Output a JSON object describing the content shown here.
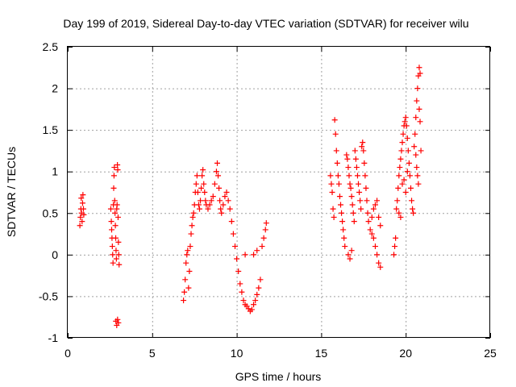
{
  "chart_data": {
    "type": "scatter",
    "title": "Day 199 of 2019, Sidereal Day-to-day VTEC variation (SDTVAR) for receiver wilu",
    "xlabel": "GPS time / hours",
    "ylabel": "SDTVAR / TECUs",
    "xlim": [
      0,
      25
    ],
    "ylim": [
      -1,
      2.5
    ],
    "xticks": [
      0,
      5,
      10,
      15,
      20,
      25
    ],
    "yticks": [
      -1,
      -0.5,
      0,
      0.5,
      1,
      1.5,
      2,
      2.5
    ],
    "xtick_labels": [
      "0",
      "5",
      "10",
      "15",
      "20",
      "25"
    ],
    "ytick_labels": [
      "-1",
      "-0.5",
      "0",
      "0.5",
      "1",
      "1.5",
      "2",
      "2.5"
    ],
    "grid": true,
    "marker": "+",
    "color": "#ff0000",
    "series": [
      {
        "name": "SDTVAR",
        "points": [
          [
            0.72,
            0.35
          ],
          [
            0.75,
            0.45
          ],
          [
            0.78,
            0.55
          ],
          [
            0.8,
            0.68
          ],
          [
            0.82,
            0.5
          ],
          [
            0.85,
            0.4
          ],
          [
            0.88,
            0.62
          ],
          [
            0.9,
            0.72
          ],
          [
            0.93,
            0.55
          ],
          [
            0.95,
            0.48
          ],
          [
            2.55,
            0.55
          ],
          [
            2.58,
            0.4
          ],
          [
            2.6,
            0.3
          ],
          [
            2.62,
            0.2
          ],
          [
            2.64,
            0.1
          ],
          [
            2.66,
            0.0
          ],
          [
            2.68,
            -0.1
          ],
          [
            2.7,
            0.6
          ],
          [
            2.72,
            0.8
          ],
          [
            2.74,
            0.95
          ],
          [
            2.76,
            1.05
          ],
          [
            2.78,
            0.65
          ],
          [
            2.8,
            0.5
          ],
          [
            2.82,
            0.35
          ],
          [
            2.84,
            0.2
          ],
          [
            2.86,
            0.05
          ],
          [
            2.88,
            -0.05
          ],
          [
            2.9,
            0.55
          ],
          [
            2.92,
            0.6
          ],
          [
            2.94,
            1.08
          ],
          [
            2.96,
            1.02
          ],
          [
            2.98,
            0.45
          ],
          [
            3.0,
            0.15
          ],
          [
            3.02,
            0.0
          ],
          [
            3.04,
            -0.12
          ],
          [
            2.85,
            -0.8
          ],
          [
            2.9,
            -0.85
          ],
          [
            2.95,
            -0.78
          ],
          [
            3.0,
            -0.82
          ],
          [
            6.85,
            -0.55
          ],
          [
            6.9,
            -0.45
          ],
          [
            6.95,
            -0.3
          ],
          [
            7.0,
            -0.1
          ],
          [
            7.05,
            0.0
          ],
          [
            7.1,
            0.05
          ],
          [
            7.15,
            -0.4
          ],
          [
            7.2,
            -0.2
          ],
          [
            7.25,
            0.1
          ],
          [
            7.3,
            0.25
          ],
          [
            7.35,
            0.35
          ],
          [
            7.4,
            0.45
          ],
          [
            7.45,
            0.5
          ],
          [
            7.5,
            0.6
          ],
          [
            7.55,
            0.75
          ],
          [
            7.6,
            0.85
          ],
          [
            7.65,
            0.95
          ],
          [
            7.7,
            0.75
          ],
          [
            7.75,
            0.6
          ],
          [
            7.8,
            0.55
          ],
          [
            7.85,
            0.65
          ],
          [
            7.9,
            0.8
          ],
          [
            7.95,
            0.95
          ],
          [
            8.0,
            1.02
          ],
          [
            8.05,
            0.85
          ],
          [
            8.1,
            0.75
          ],
          [
            8.15,
            0.65
          ],
          [
            8.2,
            0.6
          ],
          [
            8.3,
            0.55
          ],
          [
            8.4,
            0.6
          ],
          [
            8.5,
            0.65
          ],
          [
            8.6,
            0.7
          ],
          [
            8.7,
            0.85
          ],
          [
            8.8,
            1.0
          ],
          [
            8.85,
            1.1
          ],
          [
            8.9,
            0.95
          ],
          [
            8.95,
            0.8
          ],
          [
            9.0,
            0.65
          ],
          [
            9.05,
            0.55
          ],
          [
            9.1,
            0.5
          ],
          [
            9.2,
            0.6
          ],
          [
            9.3,
            0.7
          ],
          [
            9.4,
            0.75
          ],
          [
            9.5,
            0.65
          ],
          [
            9.6,
            0.55
          ],
          [
            9.7,
            0.4
          ],
          [
            9.8,
            0.25
          ],
          [
            9.9,
            0.1
          ],
          [
            10.0,
            -0.05
          ],
          [
            10.1,
            -0.2
          ],
          [
            10.2,
            -0.35
          ],
          [
            10.3,
            -0.45
          ],
          [
            10.4,
            -0.55
          ],
          [
            10.5,
            -0.6
          ],
          [
            10.6,
            -0.62
          ],
          [
            10.7,
            -0.65
          ],
          [
            10.8,
            -0.68
          ],
          [
            10.9,
            -0.66
          ],
          [
            11.0,
            -0.6
          ],
          [
            11.1,
            -0.55
          ],
          [
            11.2,
            -0.48
          ],
          [
            11.3,
            -0.4
          ],
          [
            11.4,
            -0.3
          ],
          [
            11.5,
            0.1
          ],
          [
            11.6,
            0.2
          ],
          [
            11.7,
            0.3
          ],
          [
            11.75,
            0.38
          ],
          [
            11.0,
            0.0
          ],
          [
            11.2,
            0.05
          ],
          [
            10.5,
            0.0
          ],
          [
            15.55,
            0.95
          ],
          [
            15.6,
            0.85
          ],
          [
            15.65,
            0.75
          ],
          [
            15.7,
            0.55
          ],
          [
            15.75,
            0.45
          ],
          [
            15.8,
            1.62
          ],
          [
            15.85,
            1.45
          ],
          [
            15.9,
            1.25
          ],
          [
            15.95,
            1.1
          ],
          [
            16.0,
            0.95
          ],
          [
            16.05,
            0.85
          ],
          [
            16.1,
            0.7
          ],
          [
            16.15,
            0.6
          ],
          [
            16.2,
            0.5
          ],
          [
            16.25,
            0.4
          ],
          [
            16.3,
            0.3
          ],
          [
            16.35,
            0.2
          ],
          [
            16.4,
            0.1
          ],
          [
            16.5,
            1.2
          ],
          [
            16.55,
            1.15
          ],
          [
            16.6,
            1.05
          ],
          [
            16.65,
            0.95
          ],
          [
            16.7,
            0.85
          ],
          [
            16.75,
            0.8
          ],
          [
            16.8,
            0.7
          ],
          [
            16.85,
            0.6
          ],
          [
            16.9,
            0.5
          ],
          [
            16.95,
            0.4
          ],
          [
            17.0,
            1.25
          ],
          [
            17.05,
            1.15
          ],
          [
            17.1,
            1.05
          ],
          [
            17.15,
            0.95
          ],
          [
            17.2,
            0.85
          ],
          [
            17.25,
            0.75
          ],
          [
            17.3,
            0.65
          ],
          [
            17.35,
            0.55
          ],
          [
            17.4,
            1.3
          ],
          [
            17.45,
            1.35
          ],
          [
            17.5,
            1.25
          ],
          [
            17.55,
            1.1
          ],
          [
            17.6,
            0.95
          ],
          [
            17.65,
            0.8
          ],
          [
            17.7,
            0.65
          ],
          [
            17.75,
            0.5
          ],
          [
            17.8,
            0.4
          ],
          [
            17.9,
            0.3
          ],
          [
            18.0,
            0.25
          ],
          [
            18.1,
            0.2
          ],
          [
            18.2,
            0.1
          ],
          [
            18.3,
            0.0
          ],
          [
            18.4,
            -0.1
          ],
          [
            18.5,
            -0.15
          ],
          [
            18.0,
            0.45
          ],
          [
            18.1,
            0.55
          ],
          [
            18.2,
            0.6
          ],
          [
            18.3,
            0.65
          ],
          [
            18.4,
            0.45
          ],
          [
            18.5,
            0.35
          ],
          [
            16.6,
            0.0
          ],
          [
            16.7,
            -0.05
          ],
          [
            16.8,
            0.05
          ],
          [
            19.3,
            0.0
          ],
          [
            19.35,
            0.1
          ],
          [
            19.4,
            0.2
          ],
          [
            19.45,
            0.55
          ],
          [
            19.5,
            0.65
          ],
          [
            19.55,
            0.8
          ],
          [
            19.6,
            0.95
          ],
          [
            19.65,
            1.05
          ],
          [
            19.7,
            1.15
          ],
          [
            19.75,
            1.25
          ],
          [
            19.8,
            1.35
          ],
          [
            19.85,
            1.45
          ],
          [
            19.9,
            1.55
          ],
          [
            19.95,
            1.6
          ],
          [
            20.0,
            1.65
          ],
          [
            20.05,
            1.55
          ],
          [
            20.1,
            1.4
          ],
          [
            20.15,
            1.25
          ],
          [
            20.2,
            1.1
          ],
          [
            20.25,
            0.95
          ],
          [
            20.3,
            0.8
          ],
          [
            20.35,
            0.65
          ],
          [
            20.4,
            0.55
          ],
          [
            20.45,
            0.5
          ],
          [
            20.5,
            1.3
          ],
          [
            20.55,
            1.45
          ],
          [
            20.6,
            1.65
          ],
          [
            20.65,
            1.85
          ],
          [
            20.7,
            2.0
          ],
          [
            20.75,
            2.15
          ],
          [
            20.8,
            2.25
          ],
          [
            20.85,
            2.18
          ],
          [
            20.6,
            1.2
          ],
          [
            20.65,
            1.05
          ],
          [
            20.7,
            0.95
          ],
          [
            20.75,
            0.85
          ],
          [
            20.8,
            1.75
          ],
          [
            20.85,
            1.6
          ],
          [
            20.9,
            1.25
          ],
          [
            19.8,
            0.85
          ],
          [
            19.9,
            0.9
          ],
          [
            20.0,
            0.75
          ],
          [
            20.1,
            1.0
          ],
          [
            19.6,
            0.5
          ],
          [
            19.7,
            0.45
          ]
        ]
      }
    ]
  }
}
